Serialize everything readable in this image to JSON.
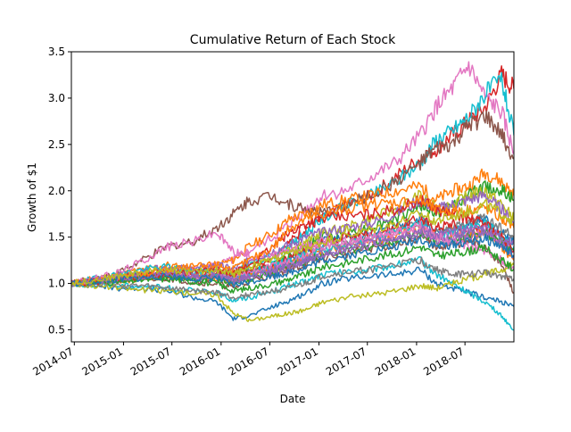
{
  "chart_data": {
    "type": "line",
    "title": "Cumulative Return of Each Stock",
    "xlabel": "Date",
    "ylabel": "Growth of $1",
    "x_range": [
      "2014-06-20",
      "2018-12-31"
    ],
    "ylim": [
      0.37,
      3.5
    ],
    "grid": false,
    "legend": "none",
    "x_ticks": [
      {
        "date": "2014-07-01",
        "label": "2014-07"
      },
      {
        "date": "2015-01-01",
        "label": "2015-01"
      },
      {
        "date": "2015-07-01",
        "label": "2015-07"
      },
      {
        "date": "2016-01-01",
        "label": "2016-01"
      },
      {
        "date": "2016-07-01",
        "label": "2016-07"
      },
      {
        "date": "2017-01-01",
        "label": "2017-01"
      },
      {
        "date": "2017-07-01",
        "label": "2017-07"
      },
      {
        "date": "2018-01-01",
        "label": "2018-01"
      },
      {
        "date": "2018-07-01",
        "label": "2018-07"
      }
    ],
    "y_ticks": [
      {
        "value": 0.5,
        "label": "0.5"
      },
      {
        "value": 1.0,
        "label": "1.0"
      },
      {
        "value": 1.5,
        "label": "1.5"
      },
      {
        "value": 2.0,
        "label": "2.0"
      },
      {
        "value": 2.5,
        "label": "2.5"
      },
      {
        "value": 3.0,
        "label": "3.0"
      },
      {
        "value": 3.5,
        "label": "3.5"
      }
    ],
    "x": [
      "2014-06-20",
      "2014-09-15",
      "2014-12-15",
      "2015-03-15",
      "2015-06-15",
      "2015-09-15",
      "2015-12-15",
      "2016-02-15",
      "2016-04-15",
      "2016-07-15",
      "2016-09-15",
      "2016-11-15",
      "2017-01-15",
      "2017-04-15",
      "2017-07-15",
      "2017-10-15",
      "2018-01-15",
      "2018-03-15",
      "2018-05-15",
      "2018-07-15",
      "2018-09-15",
      "2018-11-15",
      "2018-12-31"
    ],
    "series": [
      {
        "color": "#d62728",
        "values": [
          1.0,
          1.05,
          1.08,
          1.12,
          1.15,
          1.1,
          1.12,
          1.05,
          1.15,
          1.3,
          1.45,
          1.6,
          1.7,
          1.85,
          1.95,
          2.15,
          2.35,
          2.45,
          2.6,
          2.75,
          2.9,
          3.25,
          3.1
        ]
      },
      {
        "color": "#e377c2",
        "values": [
          1.0,
          1.03,
          1.06,
          1.1,
          1.12,
          1.15,
          1.2,
          1.25,
          1.35,
          1.5,
          1.65,
          1.8,
          1.95,
          2.0,
          2.15,
          2.3,
          2.6,
          2.9,
          3.1,
          3.35,
          3.0,
          2.85,
          2.4
        ]
      },
      {
        "color": "#17becf",
        "values": [
          1.0,
          1.02,
          1.05,
          1.08,
          1.1,
          1.08,
          1.12,
          1.1,
          1.2,
          1.3,
          1.4,
          1.55,
          1.7,
          1.85,
          1.95,
          2.1,
          2.3,
          2.55,
          2.65,
          2.8,
          3.05,
          3.2,
          2.6
        ]
      },
      {
        "color": "#8c564b",
        "values": [
          1.0,
          1.05,
          1.12,
          1.25,
          1.4,
          1.45,
          1.6,
          1.75,
          1.9,
          1.95,
          1.85,
          1.8,
          1.75,
          1.85,
          1.95,
          2.1,
          2.3,
          2.45,
          2.5,
          2.7,
          2.8,
          2.6,
          2.35
        ]
      },
      {
        "color": "#ff7f0e",
        "values": [
          1.0,
          1.05,
          1.1,
          1.15,
          1.2,
          1.15,
          1.2,
          1.25,
          1.4,
          1.55,
          1.7,
          1.75,
          1.85,
          1.9,
          1.95,
          2.0,
          2.05,
          1.9,
          2.0,
          2.05,
          2.2,
          2.1,
          1.95
        ]
      },
      {
        "color": "#2ca02c",
        "values": [
          1.0,
          1.02,
          1.04,
          1.08,
          1.1,
          1.05,
          1.08,
          1.05,
          1.12,
          1.2,
          1.3,
          1.4,
          1.5,
          1.55,
          1.6,
          1.7,
          1.85,
          1.75,
          1.85,
          1.95,
          2.05,
          2.0,
          1.9
        ]
      },
      {
        "color": "#bcbd22",
        "values": [
          1.0,
          1.03,
          1.06,
          1.1,
          1.12,
          1.08,
          1.12,
          1.1,
          1.2,
          1.3,
          1.38,
          1.45,
          1.55,
          1.6,
          1.7,
          1.8,
          1.95,
          1.8,
          1.85,
          1.95,
          2.0,
          1.85,
          1.7
        ]
      },
      {
        "color": "#9467bd",
        "values": [
          1.0,
          1.04,
          1.08,
          1.12,
          1.18,
          1.15,
          1.2,
          1.15,
          1.25,
          1.35,
          1.42,
          1.5,
          1.55,
          1.6,
          1.65,
          1.75,
          1.9,
          1.8,
          1.85,
          1.9,
          1.95,
          1.8,
          1.65
        ]
      },
      {
        "color": "#1f77b4",
        "values": [
          1.0,
          1.02,
          1.05,
          1.08,
          1.1,
          1.05,
          1.05,
          1.0,
          1.1,
          1.18,
          1.25,
          1.35,
          1.45,
          1.5,
          1.55,
          1.6,
          1.7,
          1.55,
          1.6,
          1.65,
          1.7,
          1.55,
          1.45
        ]
      },
      {
        "color": "#7f7f7f",
        "values": [
          1.0,
          1.03,
          1.05,
          1.08,
          1.1,
          1.06,
          1.08,
          1.05,
          1.12,
          1.18,
          1.22,
          1.3,
          1.4,
          1.45,
          1.5,
          1.55,
          1.65,
          1.55,
          1.6,
          1.65,
          1.7,
          1.6,
          1.5
        ]
      },
      {
        "color": "#d62728",
        "values": [
          1.0,
          1.02,
          1.06,
          1.1,
          1.12,
          1.1,
          1.12,
          1.08,
          1.15,
          1.2,
          1.28,
          1.35,
          1.45,
          1.5,
          1.55,
          1.6,
          1.7,
          1.6,
          1.65,
          1.55,
          1.6,
          1.45,
          1.3
        ]
      },
      {
        "color": "#ff7f0e",
        "values": [
          1.0,
          1.01,
          1.03,
          1.05,
          1.08,
          1.05,
          1.06,
          1.02,
          1.08,
          1.15,
          1.2,
          1.28,
          1.35,
          1.4,
          1.45,
          1.5,
          1.6,
          1.5,
          1.55,
          1.5,
          1.55,
          1.4,
          1.25
        ]
      },
      {
        "color": "#17becf",
        "values": [
          1.0,
          1.05,
          1.1,
          1.15,
          1.18,
          1.12,
          1.15,
          1.05,
          1.1,
          1.2,
          1.25,
          1.3,
          1.38,
          1.42,
          1.48,
          1.55,
          1.65,
          1.5,
          1.55,
          1.6,
          1.65,
          1.5,
          1.4
        ]
      },
      {
        "color": "#e377c2",
        "values": [
          1.0,
          1.02,
          1.05,
          1.08,
          1.12,
          1.08,
          1.1,
          1.05,
          1.12,
          1.18,
          1.25,
          1.32,
          1.4,
          1.45,
          1.5,
          1.55,
          1.62,
          1.5,
          1.52,
          1.55,
          1.58,
          1.45,
          1.35
        ]
      },
      {
        "color": "#8c564b",
        "values": [
          1.0,
          1.01,
          1.03,
          1.05,
          1.06,
          1.02,
          1.0,
          0.95,
          1.02,
          1.1,
          1.15,
          1.2,
          1.28,
          1.32,
          1.38,
          1.42,
          1.5,
          1.4,
          1.42,
          1.45,
          1.4,
          1.2,
          0.9
        ]
      },
      {
        "color": "#2ca02c",
        "values": [
          1.0,
          1.02,
          1.04,
          1.06,
          1.08,
          1.04,
          1.05,
          1.0,
          1.05,
          1.12,
          1.18,
          1.25,
          1.32,
          1.35,
          1.4,
          1.45,
          1.55,
          1.45,
          1.48,
          1.52,
          1.55,
          1.45,
          1.35
        ]
      },
      {
        "color": "#9467bd",
        "values": [
          1.0,
          1.02,
          1.05,
          1.08,
          1.1,
          1.06,
          1.08,
          1.02,
          1.08,
          1.15,
          1.2,
          1.25,
          1.32,
          1.38,
          1.42,
          1.48,
          1.55,
          1.45,
          1.48,
          1.5,
          1.55,
          1.42,
          1.3
        ]
      },
      {
        "color": "#1f77b4",
        "values": [
          1.0,
          0.98,
          0.95,
          0.95,
          0.92,
          0.85,
          0.8,
          0.62,
          0.65,
          0.75,
          0.82,
          0.9,
          1.0,
          1.05,
          1.08,
          1.1,
          1.15,
          1.0,
          0.95,
          0.9,
          0.85,
          0.8,
          0.75
        ]
      },
      {
        "color": "#17becf",
        "values": [
          1.0,
          0.99,
          0.98,
          0.97,
          0.95,
          0.92,
          0.9,
          0.82,
          0.85,
          0.92,
          0.98,
          1.02,
          1.1,
          1.12,
          1.15,
          1.2,
          1.25,
          1.1,
          1.0,
          0.9,
          0.8,
          0.65,
          0.5
        ]
      },
      {
        "color": "#bcbd22",
        "values": [
          1.0,
          0.98,
          0.95,
          0.93,
          0.92,
          0.9,
          0.88,
          0.68,
          0.6,
          0.65,
          0.68,
          0.72,
          0.8,
          0.85,
          0.88,
          0.92,
          0.98,
          0.95,
          1.0,
          1.05,
          1.1,
          1.15,
          1.2
        ]
      },
      {
        "color": "#7f7f7f",
        "values": [
          1.0,
          1.0,
          0.98,
          0.97,
          0.95,
          0.92,
          0.9,
          0.85,
          0.88,
          0.92,
          0.95,
          1.0,
          1.08,
          1.12,
          1.15,
          1.2,
          1.25,
          1.15,
          1.1,
          1.1,
          1.12,
          1.08,
          1.05
        ]
      },
      {
        "color": "#e377c2",
        "values": [
          1.0,
          1.05,
          1.12,
          1.25,
          1.4,
          1.45,
          1.55,
          1.35,
          1.3,
          1.3,
          1.35,
          1.4,
          1.45,
          1.45,
          1.5,
          1.55,
          1.6,
          1.5,
          1.45,
          1.4,
          1.35,
          1.25,
          1.15
        ]
      },
      {
        "color": "#d62728",
        "values": [
          1.0,
          1.02,
          1.05,
          1.08,
          1.1,
          1.12,
          1.15,
          1.1,
          1.2,
          1.4,
          1.55,
          1.65,
          1.7,
          1.72,
          1.75,
          1.8,
          1.9,
          1.8,
          1.75,
          1.7,
          1.65,
          1.5,
          1.35
        ]
      },
      {
        "color": "#ff7f0e",
        "values": [
          1.0,
          1.03,
          1.06,
          1.1,
          1.15,
          1.18,
          1.2,
          1.15,
          1.25,
          1.4,
          1.6,
          1.7,
          1.75,
          1.8,
          1.85,
          1.88,
          1.9,
          1.8,
          1.78,
          1.8,
          1.82,
          1.7,
          1.6
        ]
      },
      {
        "color": "#2ca02c",
        "values": [
          1.0,
          1.01,
          1.02,
          1.04,
          1.05,
          1.02,
          1.0,
          0.92,
          0.95,
          1.0,
          1.05,
          1.1,
          1.18,
          1.22,
          1.28,
          1.32,
          1.4,
          1.3,
          1.32,
          1.35,
          1.38,
          1.25,
          1.15
        ]
      },
      {
        "color": "#9467bd",
        "values": [
          1.0,
          1.03,
          1.06,
          1.08,
          1.1,
          1.08,
          1.1,
          1.02,
          1.08,
          1.12,
          1.18,
          1.25,
          1.32,
          1.38,
          1.45,
          1.5,
          1.58,
          1.52,
          1.55,
          1.58,
          1.6,
          1.5,
          1.42
        ]
      },
      {
        "color": "#1f77b4",
        "values": [
          1.0,
          1.02,
          1.04,
          1.06,
          1.08,
          1.05,
          1.06,
          0.98,
          1.02,
          1.08,
          1.12,
          1.18,
          1.25,
          1.3,
          1.35,
          1.4,
          1.48,
          1.4,
          1.42,
          1.45,
          1.48,
          1.4,
          1.3
        ]
      },
      {
        "color": "#bcbd22",
        "values": [
          1.0,
          1.04,
          1.08,
          1.12,
          1.16,
          1.12,
          1.15,
          1.1,
          1.18,
          1.26,
          1.32,
          1.38,
          1.45,
          1.52,
          1.58,
          1.65,
          1.75,
          1.68,
          1.72,
          1.78,
          1.85,
          1.75,
          1.68
        ]
      }
    ]
  }
}
